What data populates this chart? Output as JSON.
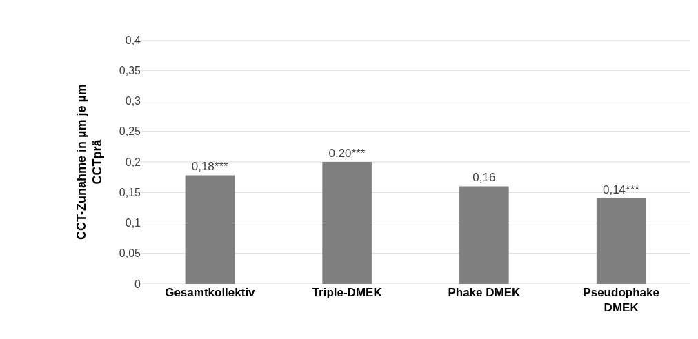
{
  "chart_data": {
    "type": "bar",
    "ylabel": "CCT-Zunahme in µm je µm CCTprä",
    "categories": [
      "Gesamtkollektiv",
      "Triple-DMEK",
      "Phake DMEK",
      "Pseudophake DMEK"
    ],
    "values": [
      0.178,
      0.2,
      0.16,
      0.14
    ],
    "value_labels": [
      "0,18***",
      "0,20***",
      "0,16",
      "0,14***"
    ],
    "color": "#7f7f7f",
    "ylim": [
      0,
      0.4
    ],
    "yticks": [
      0,
      {
        "value": 0.05,
        "label": "0,05"
      },
      {
        "value": 0.1,
        "label": "0,1"
      },
      {
        "value": 0.15,
        "label": "0,15"
      },
      {
        "value": 0.2,
        "label": "0,2"
      },
      {
        "value": 0.25,
        "label": "0,25"
      },
      {
        "value": 0.3,
        "label": "0,3"
      },
      {
        "value": 0.35,
        "label": "0,35"
      },
      {
        "value": 0.4,
        "label": "0,4"
      }
    ],
    "grid": "y"
  }
}
